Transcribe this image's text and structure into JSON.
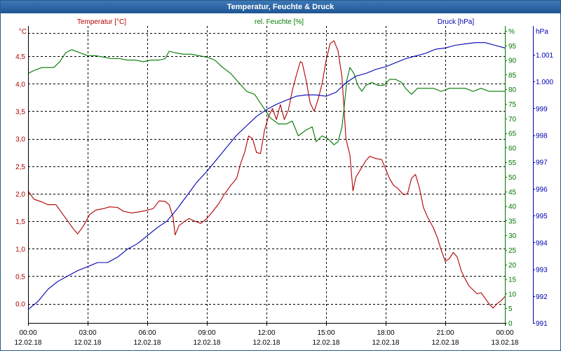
{
  "window": {
    "title": "Temperatur, Feuchte & Druck"
  },
  "colors": {
    "temperature": "#b00000",
    "humidity": "#007800",
    "pressure": "#0000b4",
    "grid": "#000000"
  },
  "chart_data": {
    "type": "line",
    "title": "Temperatur, Feuchte & Druck",
    "x": {
      "label": "",
      "range_hours": [
        0,
        24
      ],
      "ticks": [
        {
          "hour": 0,
          "time": "00:00",
          "date": "12.02.18"
        },
        {
          "hour": 3,
          "time": "03:00",
          "date": "12.02.18"
        },
        {
          "hour": 6,
          "time": "06:00",
          "date": "12.02.18"
        },
        {
          "hour": 9,
          "time": "09:00",
          "date": "12.02.18"
        },
        {
          "hour": 12,
          "time": "12:00",
          "date": "12.02.18"
        },
        {
          "hour": 15,
          "time": "15:00",
          "date": "12.02.18"
        },
        {
          "hour": 18,
          "time": "18:00",
          "date": "12.02.18"
        },
        {
          "hour": 21,
          "time": "21:00",
          "date": "12.02.18"
        },
        {
          "hour": 24,
          "time": "00:00",
          "date": "13.02.18"
        }
      ]
    },
    "axes": {
      "temperature": {
        "unit_label": "°C",
        "legend": "Temperatur [°C]",
        "range": [
          -0.35,
          5.05
        ],
        "ticks": [
          {
            "v": 0.0,
            "label": "0.0"
          },
          {
            "v": 0.5,
            "label": "0,5"
          },
          {
            "v": 1.0,
            "label": "1,0"
          },
          {
            "v": 1.5,
            "label": "1,5"
          },
          {
            "v": 2.0,
            "label": "2,0"
          },
          {
            "v": 2.5,
            "label": "2,5"
          },
          {
            "v": 3.0,
            "label": "3,0"
          },
          {
            "v": 3.5,
            "label": "3,5"
          },
          {
            "v": 4.0,
            "label": "4,0"
          },
          {
            "v": 4.5,
            "label": "4,5"
          }
        ]
      },
      "humidity": {
        "unit_label": "%",
        "legend": "rel. Feuchte [%]",
        "range": [
          0,
          100
        ],
        "ticks": [
          "0",
          "5",
          "10",
          "15",
          "20",
          "25",
          "30",
          "35",
          "40",
          "45",
          "50",
          "55",
          "60",
          "65",
          "70",
          "75",
          "80",
          "85",
          "90",
          "95",
          "%"
        ]
      },
      "pressure": {
        "unit_label": "hPa",
        "legend": "Druck [hPa]",
        "range": [
          991,
          1002.07
        ],
        "ticks": [
          {
            "v": 991,
            "label": "991"
          },
          {
            "v": 992,
            "label": "992"
          },
          {
            "v": 993,
            "label": "993"
          },
          {
            "v": 994,
            "label": "994"
          },
          {
            "v": 995,
            "label": "995"
          },
          {
            "v": 996,
            "label": "996"
          },
          {
            "v": 997,
            "label": "997"
          },
          {
            "v": 998,
            "label": "998"
          },
          {
            "v": 999,
            "label": "999"
          },
          {
            "v": 1000,
            "label": "1.000"
          },
          {
            "v": 1001,
            "label": "1.001"
          }
        ]
      }
    },
    "series": [
      {
        "name": "Temperatur [°C]",
        "axis": "temperature",
        "points": [
          [
            0,
            2.05
          ],
          [
            0.3,
            1.9
          ],
          [
            0.7,
            1.85
          ],
          [
            1.0,
            1.8
          ],
          [
            1.4,
            1.8
          ],
          [
            1.7,
            1.65
          ],
          [
            2.0,
            1.5
          ],
          [
            2.3,
            1.35
          ],
          [
            2.5,
            1.27
          ],
          [
            2.8,
            1.42
          ],
          [
            3.1,
            1.62
          ],
          [
            3.4,
            1.7
          ],
          [
            3.8,
            1.73
          ],
          [
            4.1,
            1.76
          ],
          [
            4.5,
            1.75
          ],
          [
            4.8,
            1.68
          ],
          [
            5.2,
            1.65
          ],
          [
            5.6,
            1.67
          ],
          [
            6.0,
            1.7
          ],
          [
            6.3,
            1.73
          ],
          [
            6.6,
            1.87
          ],
          [
            6.9,
            1.86
          ],
          [
            7.1,
            1.8
          ],
          [
            7.3,
            1.57
          ],
          [
            7.4,
            1.25
          ],
          [
            7.6,
            1.42
          ],
          [
            7.9,
            1.5
          ],
          [
            8.1,
            1.55
          ],
          [
            8.4,
            1.5
          ],
          [
            8.7,
            1.46
          ],
          [
            9.0,
            1.55
          ],
          [
            9.3,
            1.68
          ],
          [
            9.6,
            1.82
          ],
          [
            9.9,
            2.0
          ],
          [
            10.2,
            2.15
          ],
          [
            10.5,
            2.28
          ],
          [
            10.7,
            2.55
          ],
          [
            10.9,
            2.75
          ],
          [
            11.1,
            3.05
          ],
          [
            11.3,
            3.0
          ],
          [
            11.5,
            2.75
          ],
          [
            11.7,
            2.73
          ],
          [
            11.9,
            3.15
          ],
          [
            12.1,
            3.4
          ],
          [
            12.3,
            3.55
          ],
          [
            12.5,
            3.35
          ],
          [
            12.7,
            3.62
          ],
          [
            12.9,
            3.35
          ],
          [
            13.1,
            3.52
          ],
          [
            13.3,
            3.87
          ],
          [
            13.5,
            4.15
          ],
          [
            13.7,
            4.4
          ],
          [
            13.8,
            4.38
          ],
          [
            14.0,
            4.05
          ],
          [
            14.2,
            3.65
          ],
          [
            14.4,
            3.5
          ],
          [
            14.6,
            3.72
          ],
          [
            14.8,
            4.0
          ],
          [
            15.0,
            4.42
          ],
          [
            15.2,
            4.73
          ],
          [
            15.4,
            4.78
          ],
          [
            15.6,
            4.6
          ],
          [
            15.8,
            4.12
          ],
          [
            16.0,
            3.0
          ],
          [
            16.2,
            2.7
          ],
          [
            16.35,
            2.05
          ],
          [
            16.5,
            2.3
          ],
          [
            16.8,
            2.48
          ],
          [
            17.0,
            2.6
          ],
          [
            17.2,
            2.68
          ],
          [
            17.5,
            2.64
          ],
          [
            17.8,
            2.62
          ],
          [
            18.0,
            2.45
          ],
          [
            18.2,
            2.27
          ],
          [
            18.4,
            2.15
          ],
          [
            18.6,
            2.1
          ],
          [
            18.9,
            1.98
          ],
          [
            19.1,
            2.0
          ],
          [
            19.3,
            2.28
          ],
          [
            19.5,
            2.35
          ],
          [
            19.7,
            2.1
          ],
          [
            19.9,
            1.75
          ],
          [
            20.1,
            1.58
          ],
          [
            20.4,
            1.38
          ],
          [
            20.6,
            1.2
          ],
          [
            20.8,
            0.97
          ],
          [
            21.0,
            0.77
          ],
          [
            21.2,
            0.82
          ],
          [
            21.4,
            0.93
          ],
          [
            21.6,
            0.85
          ],
          [
            21.8,
            0.6
          ],
          [
            22.0,
            0.45
          ],
          [
            22.2,
            0.32
          ],
          [
            22.4,
            0.25
          ],
          [
            22.6,
            0.18
          ],
          [
            22.8,
            0.2
          ],
          [
            23.0,
            0.1
          ],
          [
            23.2,
            0.0
          ],
          [
            23.4,
            -0.08
          ],
          [
            23.6,
            0.0
          ],
          [
            23.8,
            0.05
          ],
          [
            24.0,
            0.13
          ]
        ]
      },
      {
        "name": "rel. Feuchte [%]",
        "axis": "humidity",
        "points": [
          [
            0,
            84
          ],
          [
            0.3,
            85
          ],
          [
            0.7,
            86
          ],
          [
            1.0,
            86
          ],
          [
            1.3,
            86
          ],
          [
            1.6,
            88
          ],
          [
            1.9,
            91
          ],
          [
            2.2,
            92
          ],
          [
            2.6,
            91
          ],
          [
            3.0,
            90
          ],
          [
            3.4,
            90
          ],
          [
            3.8,
            89.5
          ],
          [
            4.2,
            89
          ],
          [
            4.6,
            89
          ],
          [
            5.0,
            88.5
          ],
          [
            5.4,
            88.5
          ],
          [
            5.8,
            88
          ],
          [
            6.2,
            88.5
          ],
          [
            6.6,
            88.5
          ],
          [
            6.9,
            89
          ],
          [
            7.1,
            91.5
          ],
          [
            7.4,
            91
          ],
          [
            7.8,
            90.5
          ],
          [
            8.2,
            90.5
          ],
          [
            8.6,
            90
          ],
          [
            9.0,
            89.5
          ],
          [
            9.4,
            88.5
          ],
          [
            9.8,
            86
          ],
          [
            10.2,
            84
          ],
          [
            10.6,
            81
          ],
          [
            11.0,
            78
          ],
          [
            11.4,
            77
          ],
          [
            11.8,
            73
          ],
          [
            12.2,
            69
          ],
          [
            12.6,
            67
          ],
          [
            13.0,
            67
          ],
          [
            13.3,
            68
          ],
          [
            13.6,
            63
          ],
          [
            14.0,
            65
          ],
          [
            14.3,
            66
          ],
          [
            14.5,
            61
          ],
          [
            14.8,
            63
          ],
          [
            15.1,
            62
          ],
          [
            15.4,
            60
          ],
          [
            15.6,
            61
          ],
          [
            15.8,
            66
          ],
          [
            15.9,
            72
          ],
          [
            16.05,
            82
          ],
          [
            16.2,
            86
          ],
          [
            16.4,
            84
          ],
          [
            16.6,
            80
          ],
          [
            16.8,
            78
          ],
          [
            17.0,
            80
          ],
          [
            17.3,
            81
          ],
          [
            17.6,
            80
          ],
          [
            17.9,
            80
          ],
          [
            18.2,
            82
          ],
          [
            18.5,
            82
          ],
          [
            18.8,
            81
          ],
          [
            19.0,
            79
          ],
          [
            19.3,
            77
          ],
          [
            19.6,
            79
          ],
          [
            20.0,
            79
          ],
          [
            20.4,
            79
          ],
          [
            20.8,
            78
          ],
          [
            21.2,
            79
          ],
          [
            21.6,
            79
          ],
          [
            22.0,
            79
          ],
          [
            22.4,
            78
          ],
          [
            22.8,
            79
          ],
          [
            23.2,
            78
          ],
          [
            23.6,
            78
          ],
          [
            24.0,
            78
          ]
        ]
      },
      {
        "name": "Druck [hPa]",
        "axis": "pressure",
        "points": [
          [
            0,
            991.5
          ],
          [
            0.5,
            991.8
          ],
          [
            1.0,
            992.25
          ],
          [
            1.5,
            992.55
          ],
          [
            2.0,
            992.75
          ],
          [
            2.5,
            992.95
          ],
          [
            3.0,
            993.1
          ],
          [
            3.5,
            993.25
          ],
          [
            4.0,
            993.25
          ],
          [
            4.5,
            993.45
          ],
          [
            5.0,
            993.75
          ],
          [
            5.5,
            993.95
          ],
          [
            6.0,
            994.25
          ],
          [
            6.5,
            994.55
          ],
          [
            7.0,
            994.8
          ],
          [
            7.5,
            995.25
          ],
          [
            8.0,
            995.75
          ],
          [
            8.5,
            996.25
          ],
          [
            9.0,
            996.65
          ],
          [
            9.5,
            997.1
          ],
          [
            10.0,
            997.55
          ],
          [
            10.5,
            998.0
          ],
          [
            11.0,
            998.35
          ],
          [
            11.5,
            998.7
          ],
          [
            12.0,
            998.95
          ],
          [
            12.5,
            999.15
          ],
          [
            13.0,
            999.3
          ],
          [
            13.5,
            999.45
          ],
          [
            14.0,
            999.5
          ],
          [
            14.5,
            999.5
          ],
          [
            15.0,
            999.45
          ],
          [
            15.5,
            999.6
          ],
          [
            16.0,
            999.95
          ],
          [
            16.5,
            1000.2
          ],
          [
            17.0,
            1000.3
          ],
          [
            17.5,
            1000.45
          ],
          [
            18.0,
            1000.55
          ],
          [
            18.5,
            1000.7
          ],
          [
            19.0,
            1000.85
          ],
          [
            19.5,
            1000.95
          ],
          [
            20.0,
            1001.05
          ],
          [
            20.5,
            1001.2
          ],
          [
            21.0,
            1001.25
          ],
          [
            21.5,
            1001.35
          ],
          [
            22.0,
            1001.4
          ],
          [
            22.5,
            1001.45
          ],
          [
            23.0,
            1001.45
          ],
          [
            23.5,
            1001.35
          ],
          [
            24.0,
            1001.25
          ]
        ]
      }
    ]
  }
}
